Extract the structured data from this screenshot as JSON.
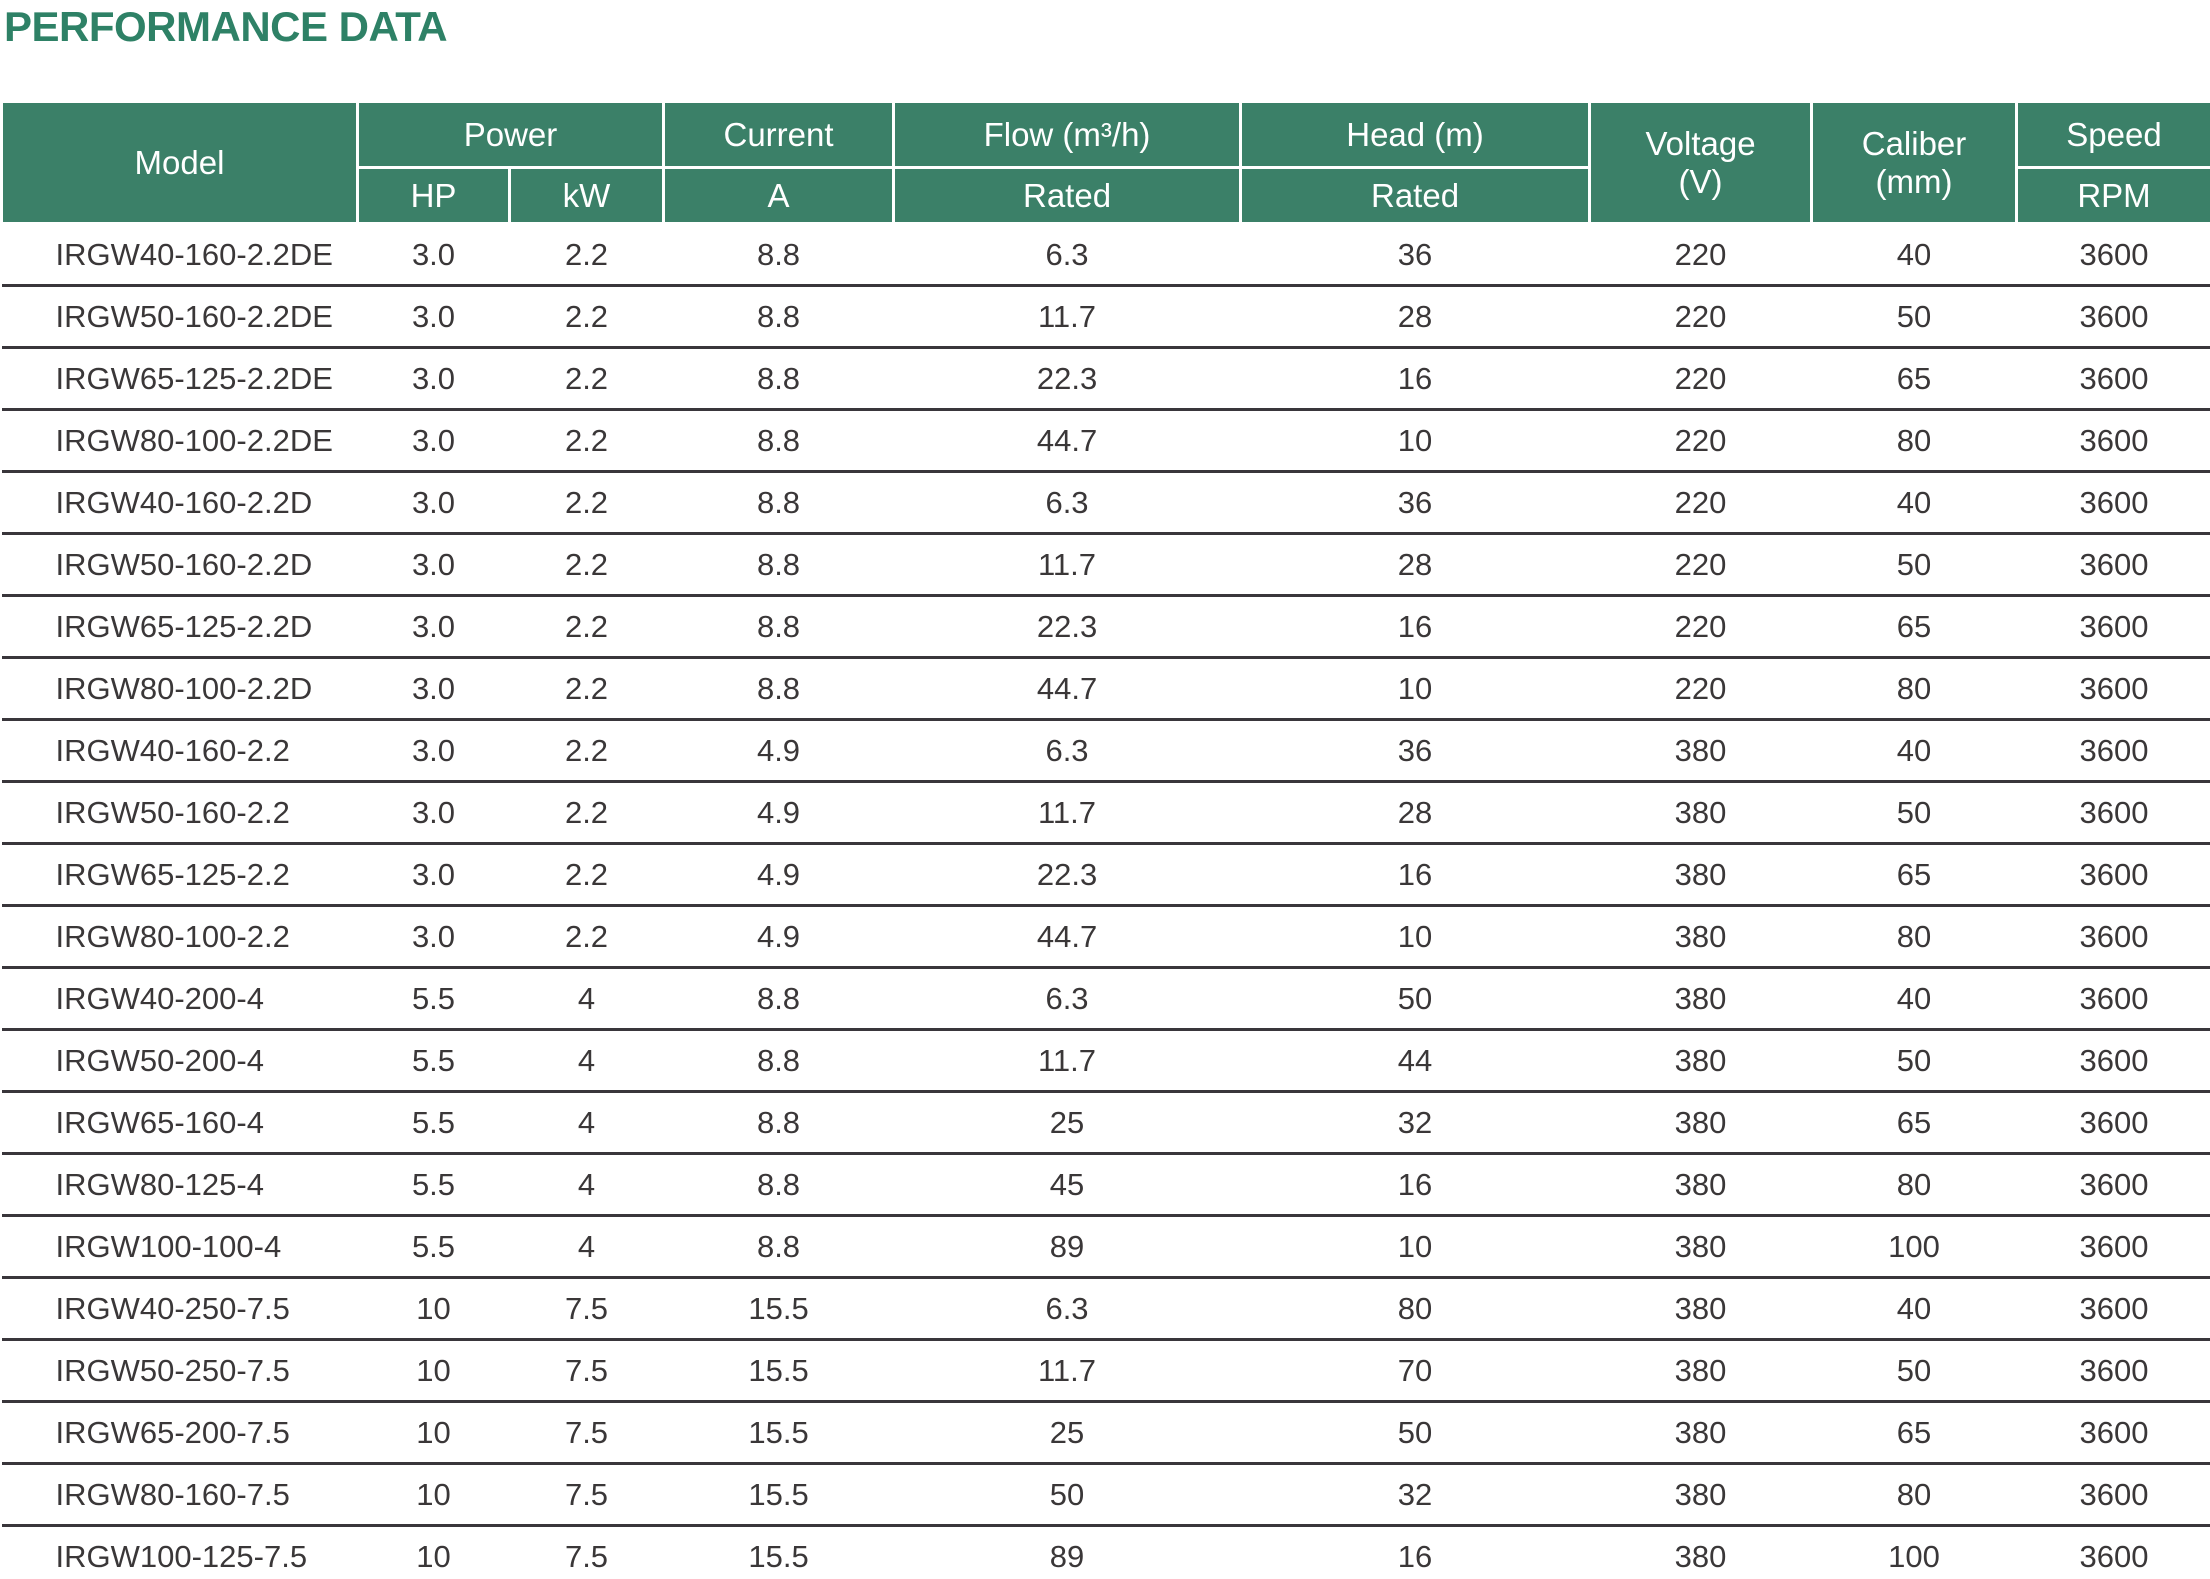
{
  "title": "PERFORMANCE DATA",
  "colors": {
    "header_green": "#3B8068",
    "title_green": "#2E8166",
    "row_divider": "#39363B",
    "data_text": "#3A3738",
    "header_text": "#FFFFFF",
    "background": "#FFFFFF"
  },
  "table": {
    "header": {
      "model": "Model",
      "power": "Power",
      "hp": "HP",
      "kw": "kW",
      "current": "Current",
      "current_unit": "A",
      "flow": "Flow (m³/h)",
      "flow_sub": "Rated",
      "head": "Head (m)",
      "head_sub": "Rated",
      "voltage": "Voltage\n(V)",
      "caliber": "Caliber\n(mm)",
      "speed": "Speed",
      "speed_unit": "RPM"
    },
    "rows": [
      [
        "IRGW40-160-2.2DE",
        "3.0",
        "2.2",
        "8.8",
        "6.3",
        "36",
        "220",
        "40",
        "3600"
      ],
      [
        "IRGW50-160-2.2DE",
        "3.0",
        "2.2",
        "8.8",
        "11.7",
        "28",
        "220",
        "50",
        "3600"
      ],
      [
        "IRGW65-125-2.2DE",
        "3.0",
        "2.2",
        "8.8",
        "22.3",
        "16",
        "220",
        "65",
        "3600"
      ],
      [
        "IRGW80-100-2.2DE",
        "3.0",
        "2.2",
        "8.8",
        "44.7",
        "10",
        "220",
        "80",
        "3600"
      ],
      [
        "IRGW40-160-2.2D",
        "3.0",
        "2.2",
        "8.8",
        "6.3",
        "36",
        "220",
        "40",
        "3600"
      ],
      [
        "IRGW50-160-2.2D",
        "3.0",
        "2.2",
        "8.8",
        "11.7",
        "28",
        "220",
        "50",
        "3600"
      ],
      [
        "IRGW65-125-2.2D",
        "3.0",
        "2.2",
        "8.8",
        "22.3",
        "16",
        "220",
        "65",
        "3600"
      ],
      [
        "IRGW80-100-2.2D",
        "3.0",
        "2.2",
        "8.8",
        "44.7",
        "10",
        "220",
        "80",
        "3600"
      ],
      [
        "IRGW40-160-2.2",
        "3.0",
        "2.2",
        "4.9",
        "6.3",
        "36",
        "380",
        "40",
        "3600"
      ],
      [
        "IRGW50-160-2.2",
        "3.0",
        "2.2",
        "4.9",
        "11.7",
        "28",
        "380",
        "50",
        "3600"
      ],
      [
        "IRGW65-125-2.2",
        "3.0",
        "2.2",
        "4.9",
        "22.3",
        "16",
        "380",
        "65",
        "3600"
      ],
      [
        "IRGW80-100-2.2",
        "3.0",
        "2.2",
        "4.9",
        "44.7",
        "10",
        "380",
        "80",
        "3600"
      ],
      [
        "IRGW40-200-4",
        "5.5",
        "4",
        "8.8",
        "6.3",
        "50",
        "380",
        "40",
        "3600"
      ],
      [
        "IRGW50-200-4",
        "5.5",
        "4",
        "8.8",
        "11.7",
        "44",
        "380",
        "50",
        "3600"
      ],
      [
        "IRGW65-160-4",
        "5.5",
        "4",
        "8.8",
        "25",
        "32",
        "380",
        "65",
        "3600"
      ],
      [
        "IRGW80-125-4",
        "5.5",
        "4",
        "8.8",
        "45",
        "16",
        "380",
        "80",
        "3600"
      ],
      [
        "IRGW100-100-4",
        "5.5",
        "4",
        "8.8",
        "89",
        "10",
        "380",
        "100",
        "3600"
      ],
      [
        "IRGW40-250-7.5",
        "10",
        "7.5",
        "15.5",
        "6.3",
        "80",
        "380",
        "40",
        "3600"
      ],
      [
        "IRGW50-250-7.5",
        "10",
        "7.5",
        "15.5",
        "11.7",
        "70",
        "380",
        "50",
        "3600"
      ],
      [
        "IRGW65-200-7.5",
        "10",
        "7.5",
        "15.5",
        "25",
        "50",
        "380",
        "65",
        "3600"
      ],
      [
        "IRGW80-160-7.5",
        "10",
        "7.5",
        "15.5",
        "50",
        "32",
        "380",
        "80",
        "3600"
      ],
      [
        "IRGW100-125-7.5",
        "10",
        "7.5",
        "15.5",
        "89",
        "16",
        "380",
        "100",
        "3600"
      ]
    ]
  }
}
